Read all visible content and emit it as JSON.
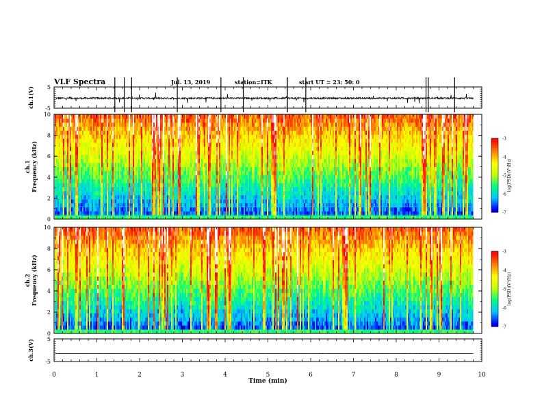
{
  "header": {
    "title": "VLF Spectra",
    "date": "Jul. 13, 2019",
    "station": "station=ITK",
    "start": "start UT = 23: 50: 0"
  },
  "colors": {
    "colormap": [
      "#00004a",
      "#0000ff",
      "#00c8ff",
      "#00ff80",
      "#c8ff00",
      "#ffff00",
      "#ff8000",
      "#ff0000",
      "#ffffff"
    ],
    "grid_line": "#00e0ff",
    "trace": "#000000"
  },
  "chart_data": [
    {
      "type": "line",
      "panel": "ch1-waveform",
      "ylabel": "ch.1(V)",
      "ylim": [
        -5,
        5
      ],
      "yticks": [
        "5",
        "-5"
      ],
      "xlim": [
        0,
        10
      ],
      "baseline": -0.3,
      "noise": 0.4,
      "series": [
        {
          "x_end": 9.8
        }
      ]
    },
    {
      "type": "heatmap",
      "panel": "ch1-spectrogram",
      "ylabel": "ch.1 Frequency (kHz)",
      "ylim": [
        0,
        10
      ],
      "yticks": [
        "0",
        "2",
        "4",
        "6",
        "8",
        "10"
      ],
      "xlim": [
        0,
        10
      ],
      "x_end": 9.8,
      "colorbar": {
        "label": "log(PSD)(V²/Hz)",
        "range": [
          -7,
          -3
        ],
        "ticks": [
          "-3",
          "-4",
          "-5",
          "-6",
          "-7"
        ]
      },
      "horizontal_lines_khz": [
        0.4,
        1.2,
        1.9,
        2.6,
        2.9
      ]
    },
    {
      "type": "heatmap",
      "panel": "ch2-spectrogram",
      "ylabel": "ch.2 Frequency (kHz)",
      "ylim": [
        0,
        10
      ],
      "yticks": [
        "0",
        "2",
        "4",
        "6",
        "8",
        "10"
      ],
      "xlim": [
        0,
        10
      ],
      "x_end": 9.8,
      "colorbar": {
        "label": "log(PSD)(V²/Hz)",
        "range": [
          -7,
          -3
        ],
        "ticks": [
          "-3",
          "-4",
          "-5",
          "-6",
          "-7"
        ]
      },
      "horizontal_lines_khz": []
    },
    {
      "type": "line",
      "panel": "ch3-waveform",
      "ylabel": "ch.3(V)",
      "ylim": [
        -5,
        5
      ],
      "yticks": [
        "5",
        "-5"
      ],
      "xlim": [
        0,
        10
      ],
      "baseline": -1.5,
      "noise": 0.05,
      "series": [
        {
          "x_end": 9.8
        }
      ]
    }
  ],
  "xaxis": {
    "label": "Time (min)",
    "ticks": [
      "0",
      "1",
      "2",
      "3",
      "4",
      "5",
      "6",
      "7",
      "8",
      "9",
      "10"
    ]
  }
}
